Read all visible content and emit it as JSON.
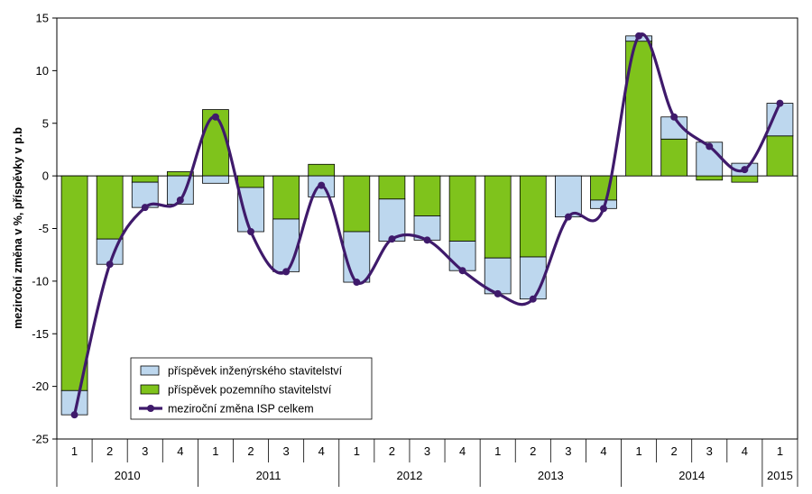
{
  "chart_data": {
    "type": "bar",
    "stacked": true,
    "ylabel": "meziroční změna v %, příspěvky v p.b",
    "ylim": [
      -25,
      15
    ],
    "yticks": [
      -25,
      -20,
      -15,
      -10,
      -5,
      0,
      5,
      10,
      15
    ],
    "grid": false,
    "legend_position": "bottom-left",
    "categories": [
      "1",
      "2",
      "3",
      "4",
      "1",
      "2",
      "3",
      "4",
      "1",
      "2",
      "3",
      "4",
      "1",
      "2",
      "3",
      "4",
      "1",
      "2",
      "3",
      "4",
      "1"
    ],
    "year_groups": [
      {
        "label": "2010",
        "count": 4
      },
      {
        "label": "2011",
        "count": 4
      },
      {
        "label": "2012",
        "count": 4
      },
      {
        "label": "2013",
        "count": 4
      },
      {
        "label": "2014",
        "count": 4
      },
      {
        "label": "2015",
        "count": 1
      }
    ],
    "series": [
      {
        "name": "příspěvek pozemního stavitelství",
        "kind": "bar",
        "color": "#7fc31c",
        "values": [
          -20.4,
          -6.0,
          -0.6,
          0.4,
          6.3,
          -1.1,
          -4.1,
          1.1,
          -5.3,
          -2.2,
          -3.8,
          -6.2,
          -7.8,
          -7.7,
          0.0,
          -2.3,
          12.8,
          3.5,
          -0.4,
          -0.6,
          3.8
        ]
      },
      {
        "name": "příspěvek inženýrského stavitelství",
        "kind": "bar",
        "color": "#bdd7ee",
        "values": [
          -2.3,
          -2.4,
          -2.4,
          -2.7,
          -0.7,
          -4.2,
          -5.0,
          -2.0,
          -4.8,
          -4.0,
          -2.3,
          -2.8,
          -3.4,
          -4.0,
          -3.9,
          -0.8,
          0.5,
          2.1,
          3.2,
          1.2,
          3.1
        ]
      },
      {
        "name": "meziroční změna ISP celkem",
        "kind": "line",
        "color": "#3f1a6b",
        "values": [
          -22.7,
          -8.4,
          -3.0,
          -2.3,
          5.6,
          -5.3,
          -9.1,
          -0.9,
          -10.1,
          -6.0,
          -6.1,
          -9.0,
          -11.2,
          -11.7,
          -3.9,
          -3.1,
          13.3,
          5.6,
          2.8,
          0.6,
          6.9
        ]
      }
    ]
  }
}
